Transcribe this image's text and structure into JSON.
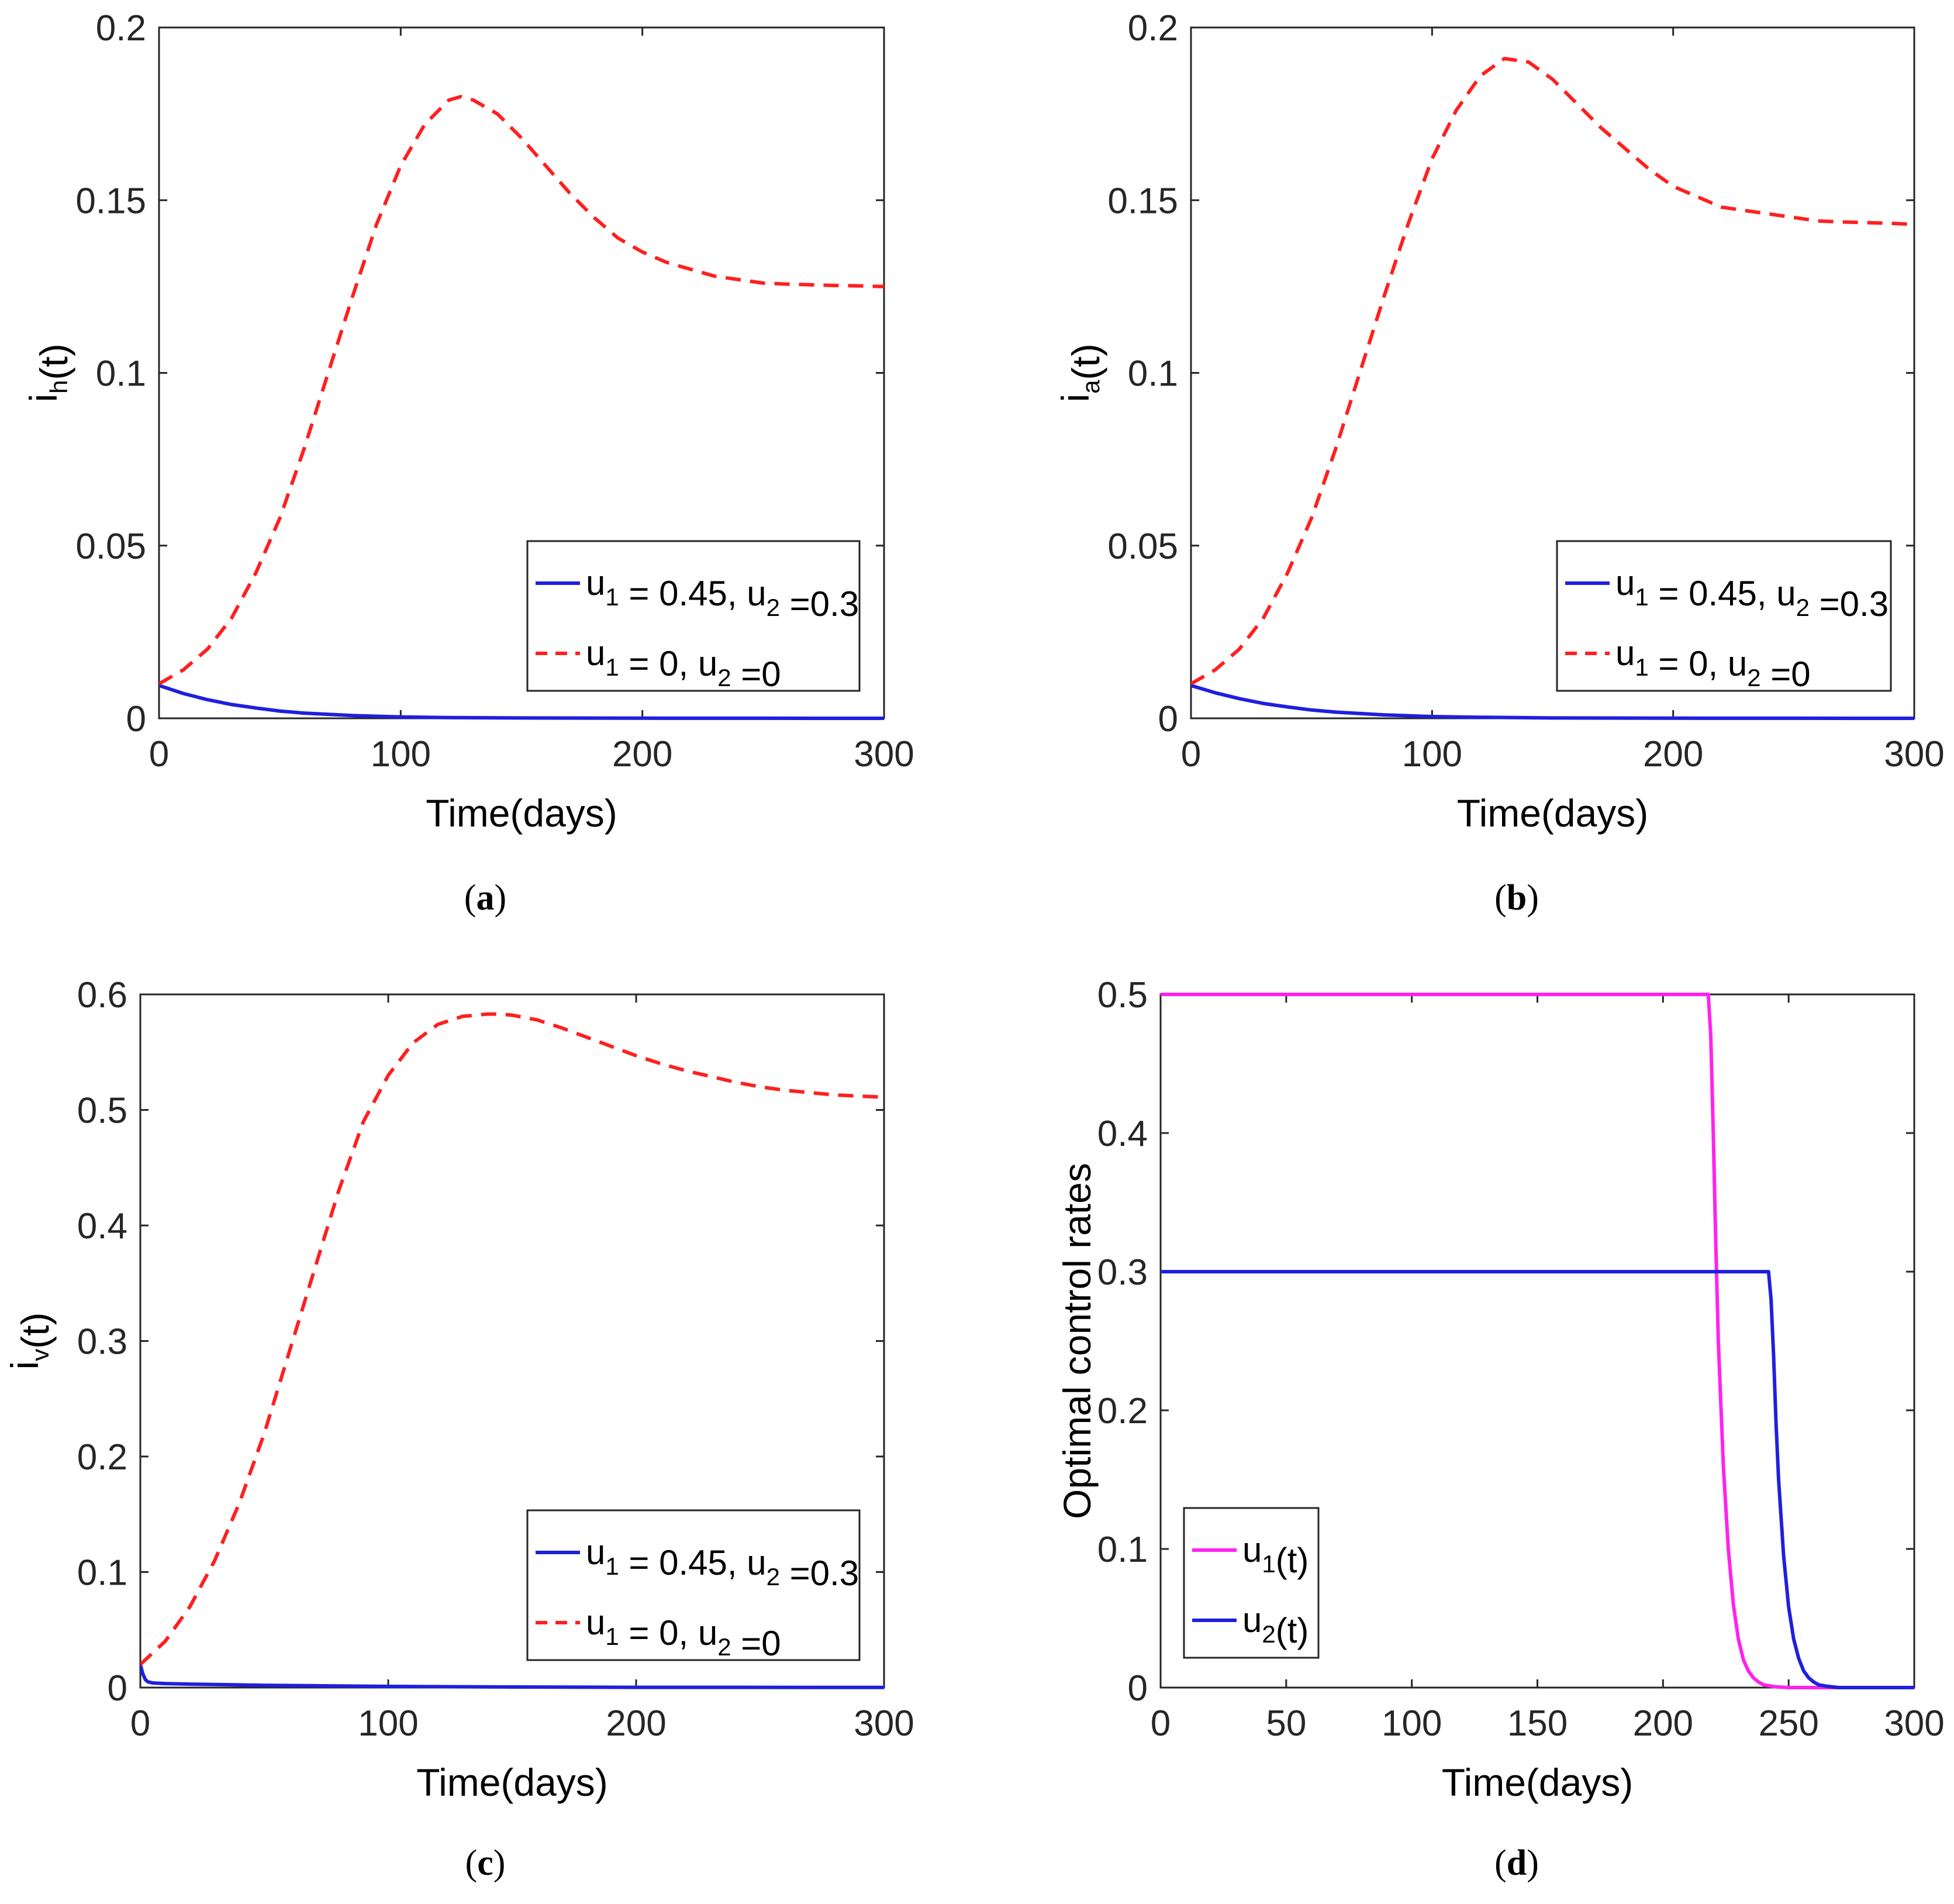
{
  "colors": {
    "blue": "#1f1fdf",
    "red": "#ff1f1f",
    "magenta": "#ff22ee",
    "axis": "#262626"
  },
  "chart_data": [
    {
      "id": "a",
      "type": "line",
      "caption_letter": "a",
      "xlabel": "Time(days)",
      "ylabel": {
        "main": "i",
        "sub": "h",
        "suffix": "(t)"
      },
      "xlim": [
        0,
        300
      ],
      "ylim": [
        0,
        0.2
      ],
      "xticks": [
        0,
        100,
        200,
        300
      ],
      "xtick_labels": [
        "0",
        "100",
        "200",
        "300"
      ],
      "yticks": [
        0,
        0.05,
        0.1,
        0.15,
        0.2
      ],
      "ytick_labels": [
        "0",
        "0.05",
        "0.1",
        "0.15",
        "0.2"
      ],
      "legend_position": "lower-right",
      "series": [
        {
          "name": "u1 = 0.45, u2 =0.3",
          "legend": [
            {
              "t": "u"
            },
            {
              "t": "1",
              "sub": true
            },
            {
              "t": " = 0.45, u"
            },
            {
              "t": "2",
              "sub": true
            },
            {
              "t": " =0.3"
            }
          ],
          "color": "#1f1fdf",
          "style": "solid",
          "x": [
            0,
            10,
            20,
            30,
            40,
            50,
            60,
            80,
            100,
            120,
            150,
            200,
            250,
            300
          ],
          "y": [
            0.0095,
            0.0072,
            0.0054,
            0.004,
            0.003,
            0.0021,
            0.0015,
            0.0008,
            0.0004,
            0.0002,
            0.0001,
            3e-05,
            1e-05,
            0
          ]
        },
        {
          "name": "u1 = 0, u2 =0",
          "legend": [
            {
              "t": "u"
            },
            {
              "t": "1",
              "sub": true
            },
            {
              "t": " = 0, u"
            },
            {
              "t": "2",
              "sub": true
            },
            {
              "t": " =0"
            }
          ],
          "color": "#ff1f1f",
          "style": "dashed",
          "x": [
            0,
            10,
            20,
            30,
            40,
            50,
            60,
            70,
            80,
            90,
            100,
            110,
            120,
            125,
            130,
            140,
            150,
            160,
            170,
            180,
            190,
            200,
            210,
            220,
            230,
            240,
            250,
            260,
            270,
            280,
            290,
            300
          ],
          "y": [
            0.01,
            0.014,
            0.02,
            0.029,
            0.042,
            0.058,
            0.078,
            0.1,
            0.122,
            0.143,
            0.16,
            0.172,
            0.179,
            0.18,
            0.179,
            0.175,
            0.168,
            0.16,
            0.152,
            0.145,
            0.139,
            0.135,
            0.132,
            0.13,
            0.128,
            0.127,
            0.126,
            0.1257,
            0.1255,
            0.1253,
            0.1252,
            0.125
          ]
        }
      ]
    },
    {
      "id": "b",
      "type": "line",
      "caption_letter": "b",
      "xlabel": "Time(days)",
      "ylabel": {
        "main": "i",
        "sub": "a",
        "suffix": "(t)"
      },
      "xlim": [
        0,
        300
      ],
      "ylim": [
        0,
        0.2
      ],
      "xticks": [
        0,
        100,
        200,
        300
      ],
      "xtick_labels": [
        "0",
        "100",
        "200",
        "300"
      ],
      "yticks": [
        0,
        0.05,
        0.1,
        0.15,
        0.2
      ],
      "ytick_labels": [
        "0",
        "0.05",
        "0.1",
        "0.15",
        "0.2"
      ],
      "legend_position": "lower-right",
      "series": [
        {
          "name": "u1 = 0.45, u2 =0.3",
          "legend": [
            {
              "t": "u"
            },
            {
              "t": "1",
              "sub": true
            },
            {
              "t": " = 0.45, u"
            },
            {
              "t": "2",
              "sub": true
            },
            {
              "t": " =0.3"
            }
          ],
          "color": "#1f1fdf",
          "style": "solid",
          "x": [
            0,
            10,
            20,
            30,
            40,
            50,
            60,
            80,
            100,
            120,
            150,
            200,
            250,
            300
          ],
          "y": [
            0.0095,
            0.0074,
            0.0057,
            0.0043,
            0.0033,
            0.0024,
            0.0018,
            0.001,
            0.0005,
            0.0003,
            0.0001,
            3e-05,
            1e-05,
            0
          ]
        },
        {
          "name": "u1 = 0, u2 =0",
          "legend": [
            {
              "t": "u"
            },
            {
              "t": "1",
              "sub": true
            },
            {
              "t": " = 0, u"
            },
            {
              "t": "2",
              "sub": true
            },
            {
              "t": " =0"
            }
          ],
          "color": "#ff1f1f",
          "style": "dashed",
          "x": [
            0,
            10,
            20,
            30,
            40,
            50,
            60,
            70,
            80,
            90,
            100,
            110,
            120,
            130,
            140,
            150,
            160,
            170,
            180,
            190,
            200,
            210,
            220,
            230,
            240,
            250,
            260,
            270,
            280,
            290,
            300
          ],
          "y": [
            0.01,
            0.014,
            0.02,
            0.029,
            0.042,
            0.058,
            0.078,
            0.1,
            0.122,
            0.143,
            0.162,
            0.176,
            0.186,
            0.191,
            0.19,
            0.185,
            0.178,
            0.171,
            0.165,
            0.159,
            0.154,
            0.151,
            0.148,
            0.147,
            0.146,
            0.145,
            0.144,
            0.1437,
            0.1435,
            0.1433,
            0.143
          ]
        }
      ]
    },
    {
      "id": "c",
      "type": "line",
      "caption_letter": "c",
      "xlabel": "Time(days)",
      "ylabel": {
        "main": "i",
        "sub": "v",
        "suffix": "(t)"
      },
      "xlim": [
        0,
        300
      ],
      "ylim": [
        0,
        0.6
      ],
      "xticks": [
        0,
        100,
        200,
        300
      ],
      "xtick_labels": [
        "0",
        "100",
        "200",
        "300"
      ],
      "yticks": [
        0,
        0.1,
        0.2,
        0.3,
        0.4,
        0.5,
        0.6
      ],
      "ytick_labels": [
        "0",
        "0.1",
        "0.2",
        "0.3",
        "0.4",
        "0.5",
        "0.6"
      ],
      "legend_position": "lower-right",
      "series": [
        {
          "name": "u1 = 0.45, u2 =0.3",
          "legend": [
            {
              "t": "u"
            },
            {
              "t": "1",
              "sub": true
            },
            {
              "t": " = 0.45, u"
            },
            {
              "t": "2",
              "sub": true
            },
            {
              "t": " =0.3"
            }
          ],
          "color": "#1f1fdf",
          "style": "solid",
          "x": [
            0,
            1,
            2,
            3,
            5,
            10,
            20,
            50,
            100,
            150,
            200,
            300
          ],
          "y": [
            0.02,
            0.012,
            0.007,
            0.005,
            0.004,
            0.0035,
            0.003,
            0.002,
            0.001,
            0.0005,
            0.0002,
            0.0001
          ]
        },
        {
          "name": "u1 = 0, u2 =0",
          "legend": [
            {
              "t": "u"
            },
            {
              "t": "1",
              "sub": true
            },
            {
              "t": " = 0, u"
            },
            {
              "t": "2",
              "sub": true
            },
            {
              "t": " =0"
            }
          ],
          "color": "#ff1f1f",
          "style": "dashed",
          "x": [
            0,
            10,
            20,
            30,
            40,
            50,
            60,
            70,
            80,
            90,
            100,
            110,
            120,
            130,
            140,
            145,
            150,
            160,
            170,
            180,
            190,
            200,
            210,
            220,
            230,
            240,
            250,
            260,
            270,
            280,
            290,
            300
          ],
          "y": [
            0.02,
            0.04,
            0.07,
            0.11,
            0.16,
            0.22,
            0.29,
            0.36,
            0.43,
            0.49,
            0.53,
            0.558,
            0.574,
            0.581,
            0.583,
            0.583,
            0.582,
            0.578,
            0.571,
            0.563,
            0.555,
            0.547,
            0.54,
            0.534,
            0.529,
            0.524,
            0.52,
            0.517,
            0.515,
            0.513,
            0.512,
            0.511
          ]
        }
      ]
    },
    {
      "id": "d",
      "type": "line",
      "caption_letter": "d",
      "xlabel": "Time(days)",
      "ylabel": {
        "main": "Optimal control rates",
        "sub": "",
        "suffix": ""
      },
      "xlim": [
        0,
        300
      ],
      "ylim": [
        0,
        0.5
      ],
      "xticks": [
        0,
        50,
        100,
        150,
        200,
        250,
        300
      ],
      "xtick_labels": [
        "0",
        "50",
        "100",
        "150",
        "200",
        "250",
        "300"
      ],
      "yticks": [
        0,
        0.1,
        0.2,
        0.3,
        0.4,
        0.5
      ],
      "ytick_labels": [
        "0",
        "0.1",
        "0.2",
        "0.3",
        "0.4",
        "0.5"
      ],
      "legend_position": "lower-left",
      "series": [
        {
          "name": "u1(t)",
          "legend": [
            {
              "t": "u"
            },
            {
              "t": "1",
              "sub": true
            },
            {
              "t": "(t)"
            }
          ],
          "color": "#ff22ee",
          "style": "solid",
          "x": [
            0,
            100,
            200,
            218,
            219,
            220,
            221,
            222,
            224,
            226,
            228,
            230,
            232,
            234,
            236,
            238,
            240,
            245,
            250,
            300
          ],
          "y": [
            0.5,
            0.5,
            0.5,
            0.5,
            0.47,
            0.4,
            0.32,
            0.25,
            0.16,
            0.1,
            0.06,
            0.035,
            0.02,
            0.012,
            0.007,
            0.004,
            0.002,
            0.0005,
            0,
            0
          ]
        },
        {
          "name": "u2(t)",
          "legend": [
            {
              "t": "u"
            },
            {
              "t": "2",
              "sub": true
            },
            {
              "t": "(t)"
            }
          ],
          "color": "#1f1fdf",
          "style": "solid",
          "x": [
            0,
            100,
            200,
            242,
            243,
            244,
            245,
            246,
            248,
            250,
            252,
            254,
            256,
            258,
            260,
            262,
            265,
            270,
            300
          ],
          "y": [
            0.3,
            0.3,
            0.3,
            0.3,
            0.28,
            0.24,
            0.19,
            0.15,
            0.095,
            0.058,
            0.035,
            0.021,
            0.012,
            0.007,
            0.004,
            0.002,
            0.001,
            0,
            0
          ]
        }
      ]
    }
  ]
}
